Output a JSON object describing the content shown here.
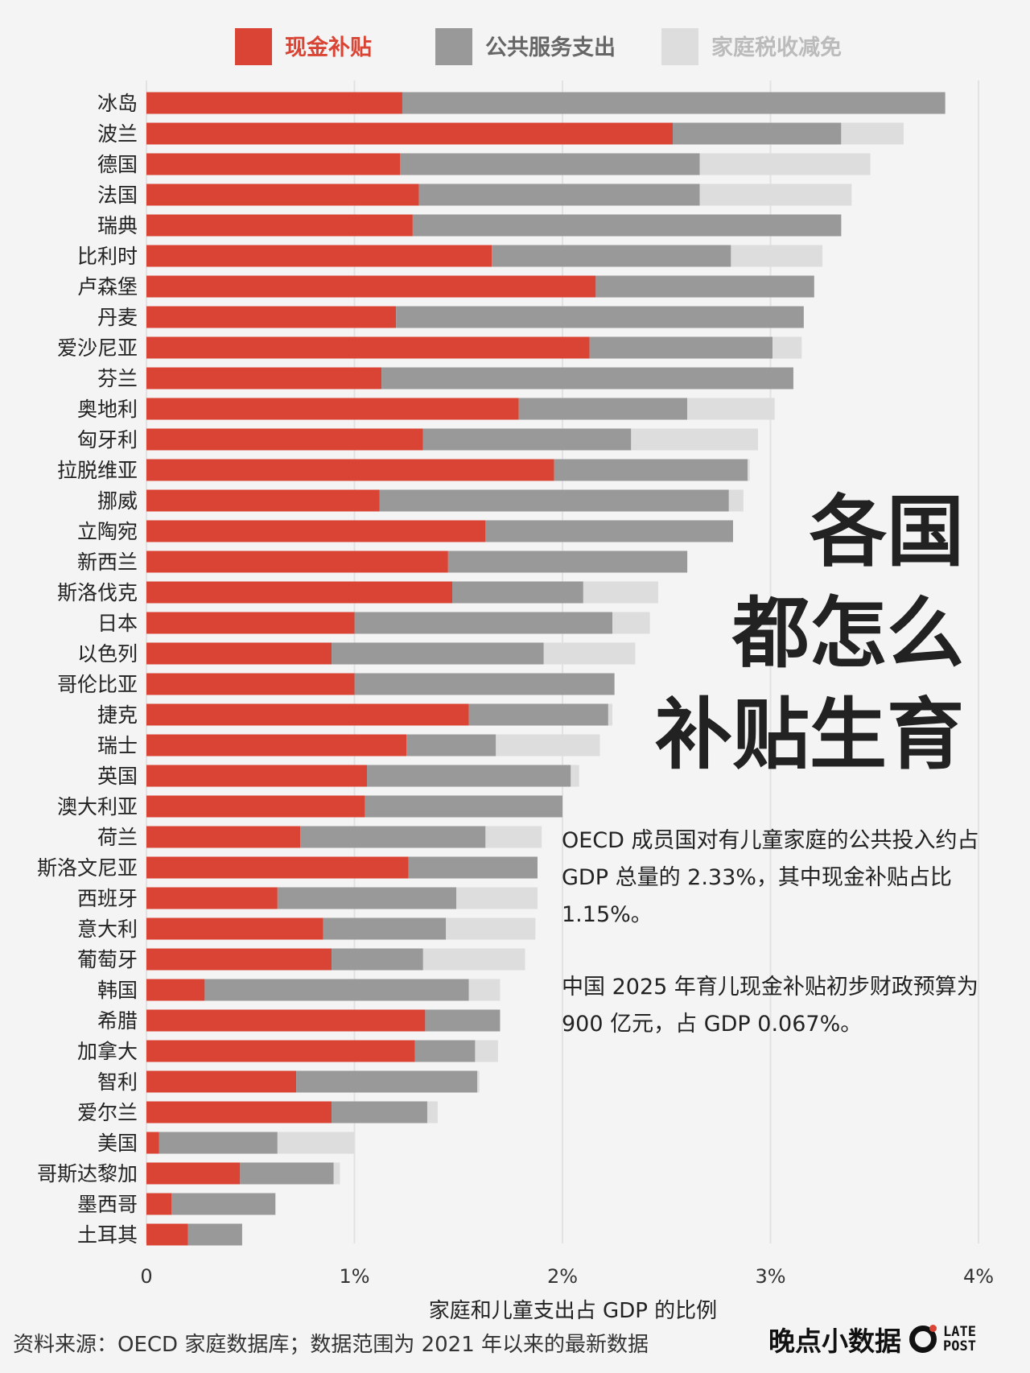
{
  "chart_data": {
    "type": "bar",
    "orientation": "horizontal",
    "stacked": true,
    "categories": [
      "冰岛",
      "波兰",
      "德国",
      "法国",
      "瑞典",
      "比利时",
      "卢森堡",
      "丹麦",
      "爱沙尼亚",
      "芬兰",
      "奥地利",
      "匈牙利",
      "拉脱维亚",
      "挪威",
      "立陶宛",
      "新西兰",
      "斯洛伐克",
      "日本",
      "以色列",
      "哥伦比亚",
      "捷克",
      "瑞士",
      "英国",
      "澳大利亚",
      "荷兰",
      "斯洛文尼亚",
      "西班牙",
      "意大利",
      "葡萄牙",
      "韩国",
      "希腊",
      "加拿大",
      "智利",
      "爱尔兰",
      "美国",
      "哥斯达黎加",
      "墨西哥",
      "土耳其"
    ],
    "series": [
      {
        "name": "现金补贴",
        "color": "#d94434",
        "values": [
          1.23,
          2.53,
          1.22,
          1.31,
          1.28,
          1.66,
          2.16,
          1.2,
          2.13,
          1.13,
          1.79,
          1.33,
          1.96,
          1.12,
          1.63,
          1.45,
          1.47,
          1.0,
          0.89,
          1.0,
          1.55,
          1.25,
          1.06,
          1.05,
          0.74,
          1.26,
          0.63,
          0.85,
          0.89,
          0.28,
          1.34,
          1.29,
          0.72,
          0.89,
          0.06,
          0.45,
          0.12,
          0.2
        ]
      },
      {
        "name": "公共服务支出",
        "color": "#999999",
        "values": [
          2.61,
          0.81,
          1.44,
          1.35,
          2.06,
          1.15,
          1.05,
          1.96,
          0.88,
          1.98,
          0.81,
          1.0,
          0.93,
          1.68,
          1.19,
          1.15,
          0.63,
          1.24,
          1.02,
          1.25,
          0.67,
          0.43,
          0.98,
          0.95,
          0.89,
          0.62,
          0.86,
          0.59,
          0.44,
          1.27,
          0.36,
          0.29,
          0.87,
          0.46,
          0.57,
          0.45,
          0.5,
          0.26
        ]
      },
      {
        "name": "家庭税收减免",
        "color": "#dddddd",
        "values": [
          0,
          0.3,
          0.82,
          0.73,
          0,
          0.44,
          0,
          0,
          0.14,
          0,
          0.42,
          0.61,
          0.01,
          0.07,
          0,
          0,
          0.36,
          0.18,
          0.44,
          0,
          0.02,
          0.5,
          0.04,
          0,
          0.27,
          0,
          0.39,
          0.43,
          0.49,
          0.15,
          0,
          0.11,
          0.01,
          0.05,
          0.37,
          0.03,
          0,
          0
        ]
      }
    ],
    "xlim": [
      0,
      4
    ],
    "xticks": [
      "0",
      "1%",
      "2%",
      "3%",
      "4%"
    ],
    "xlabel": "家庭和儿童支出占 GDP 的比例",
    "grid": "vertical",
    "legend": "top"
  },
  "headline": [
    "各国",
    "都怎么",
    "补贴生育"
  ],
  "notes": [
    "OECD 成员国对有儿童家庭的公共投入约占 GDP 总量的 2.33%，其中现金补贴占比 1.15%。",
    "中国 2025 年育儿现金补贴初步财政预算为 900 亿元，占 GDP 0.067%。"
  ],
  "source": "资料来源：OECD 家庭数据库；数据范围为 2021 年以来的最新数据",
  "brand": {
    "name": "晚点小数据",
    "latin_top": "LATE",
    "latin_bottom": "POST"
  }
}
